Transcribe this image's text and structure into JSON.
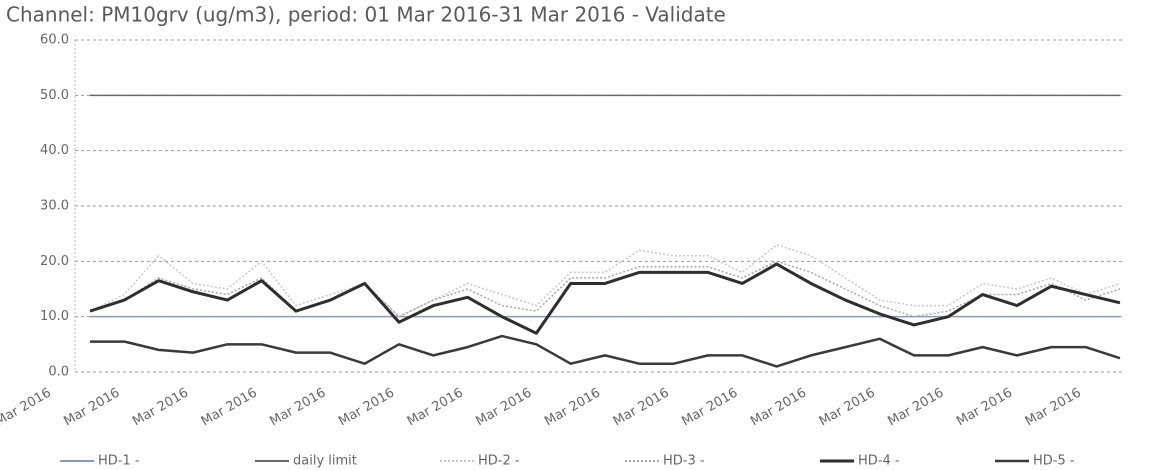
{
  "chart_data": {
    "type": "line",
    "title": "Channel: PM10grv (ug/m3), period: 01 Mar 2016-31 Mar 2016 - Validate",
    "categories": [
      "Mar 2016",
      null,
      "Mar 2016",
      null,
      "Mar 2016",
      null,
      "Mar 2016",
      null,
      "Mar 2016",
      null,
      "Mar 2016",
      null,
      "Mar 2016",
      null,
      "Mar 2016",
      null,
      "Mar 2016",
      null,
      "Mar 2016",
      null,
      "Mar 2016",
      null,
      "Mar 2016",
      null,
      "Mar 2016",
      null,
      "Mar 2016",
      null,
      "Mar 2016",
      null,
      "Mar 2016"
    ],
    "series": [
      {
        "name": "HD-1 -",
        "color": "#8a9ab8",
        "width": 1.5,
        "dash": "solid",
        "values": [
          10,
          10,
          10,
          10,
          10,
          10,
          10,
          10,
          10,
          10,
          10,
          10,
          10,
          10,
          10,
          10,
          10,
          10,
          10,
          10,
          10,
          10,
          10,
          10,
          10,
          10,
          10,
          10,
          10,
          10,
          10
        ]
      },
      {
        "name": "daily limit",
        "color": "#6a6a6a",
        "width": 1.5,
        "dash": "solid",
        "values": [
          50,
          50,
          50,
          50,
          50,
          50,
          50,
          50,
          50,
          50,
          50,
          50,
          50,
          50,
          50,
          50,
          50,
          50,
          50,
          50,
          50,
          50,
          50,
          50,
          50,
          50,
          50,
          50,
          50,
          50,
          50
        ]
      },
      {
        "name": "HD-2 -",
        "color": "#c8c8c8",
        "width": 1.5,
        "dash": "dotted",
        "values": [
          11,
          14,
          21,
          16,
          15,
          20,
          12,
          14,
          16,
          10,
          13,
          16,
          14,
          12,
          18,
          18,
          22,
          21,
          21,
          18,
          23,
          21,
          17,
          13,
          12,
          12,
          16,
          15,
          17,
          14,
          16
        ]
      },
      {
        "name": "HD-3 -",
        "color": "#a8a8a8",
        "width": 1.5,
        "dash": "dotted",
        "values": [
          11,
          13,
          17,
          15,
          14,
          17,
          11,
          13,
          16,
          10,
          13,
          15,
          12,
          11,
          17,
          17,
          19,
          19,
          19,
          17,
          20,
          18,
          15,
          12,
          10,
          11,
          14,
          14,
          16,
          13,
          15
        ]
      },
      {
        "name": "HD-4 -",
        "color": "#2e2e2e",
        "width": 3,
        "dash": "solid",
        "values": [
          11,
          13,
          16.5,
          14.5,
          13,
          16.5,
          11,
          13,
          16,
          9,
          12,
          13.5,
          10,
          7,
          16,
          16,
          18,
          18,
          18,
          16,
          19.5,
          16,
          13,
          10.5,
          8.5,
          10,
          14,
          12,
          15.5,
          14,
          12.5
        ]
      },
      {
        "name": "HD-5 -",
        "color": "#3a3a3a",
        "width": 2.5,
        "dash": "solid",
        "values": [
          5.5,
          5.5,
          4,
          3.5,
          5,
          5,
          3.5,
          3.5,
          1.5,
          5,
          3,
          4.5,
          6.5,
          5,
          1.5,
          3,
          1.5,
          1.5,
          3,
          3,
          1,
          3,
          4.5,
          6,
          3,
          3,
          4.5,
          3,
          4.5,
          4.5,
          2.5
        ]
      }
    ],
    "ylim": [
      0,
      60
    ],
    "yticks": [
      {
        "value": 0,
        "label": "0.0"
      },
      {
        "value": 10,
        "label": "10.0"
      },
      {
        "value": 20,
        "label": "20.0"
      },
      {
        "value": 30,
        "label": "30.0"
      },
      {
        "value": 40,
        "label": "40.0"
      },
      {
        "value": 50,
        "label": "50.0"
      },
      {
        "value": 60,
        "label": "60.0"
      }
    ],
    "grid": true
  }
}
